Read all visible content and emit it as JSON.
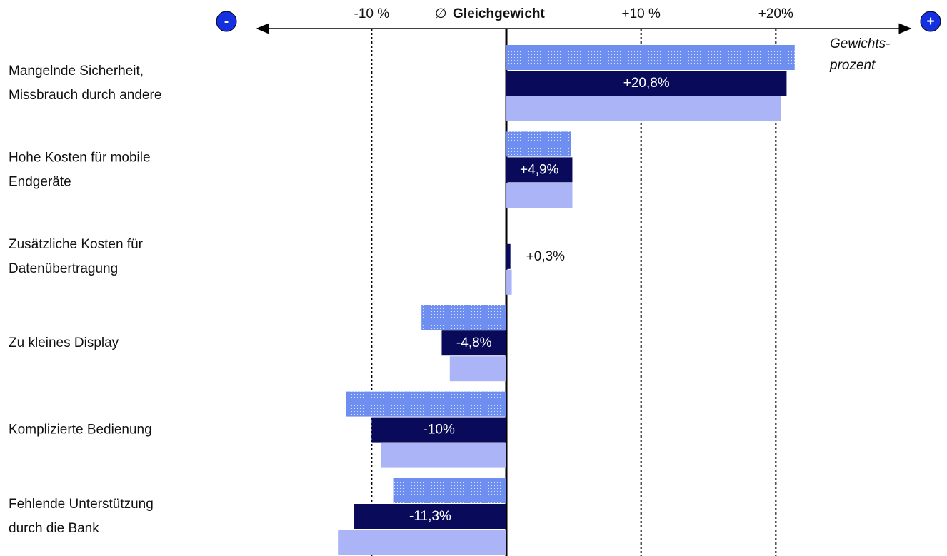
{
  "chart_data": {
    "type": "bar",
    "orientation": "horizontal",
    "categories": [
      [
        "Mangelnde Sicherheit,",
        "Missbrauch durch andere"
      ],
      [
        "Hohe Kosten für mobile",
        "Endgeräte"
      ],
      [
        "Zusätzliche Kosten für",
        "Datenübertragung"
      ],
      [
        "Zu kleines Display"
      ],
      [
        "Komplizierte Bedienung"
      ],
      [
        "Fehlende Unterstützung",
        "durch die Bank"
      ]
    ],
    "series": [
      {
        "color": "#6f8ff0",
        "pattern": "dotted",
        "values": [
          21.4,
          4.8,
          0,
          -6.3,
          -11.9,
          -8.4
        ]
      },
      {
        "color": "#0a0a5a",
        "values": [
          20.8,
          4.9,
          0.3,
          -4.8,
          -10,
          -11.3
        ],
        "value_labels": [
          "+20,8%",
          "+4,9%",
          "+0,3%",
          "-4,8%",
          "-10%",
          "-11,3%"
        ]
      },
      {
        "color": "#aab4f6",
        "values": [
          20.4,
          4.9,
          0.4,
          -4.2,
          -9.3,
          -12.5
        ]
      }
    ],
    "xlim": [
      -18.5,
      30
    ],
    "xticks": [
      {
        "value": -10,
        "label": "-10 %"
      },
      {
        "value": 0,
        "label": "Gleichgewicht"
      },
      {
        "value": 10,
        "label": "+10 %"
      },
      {
        "value": 20,
        "label": "+20%"
      }
    ],
    "zero_symbol": "∅",
    "axis_label": [
      "Gewichts-",
      "prozent"
    ],
    "minus_icon": "-",
    "plus_icon": "+",
    "grid": true
  }
}
